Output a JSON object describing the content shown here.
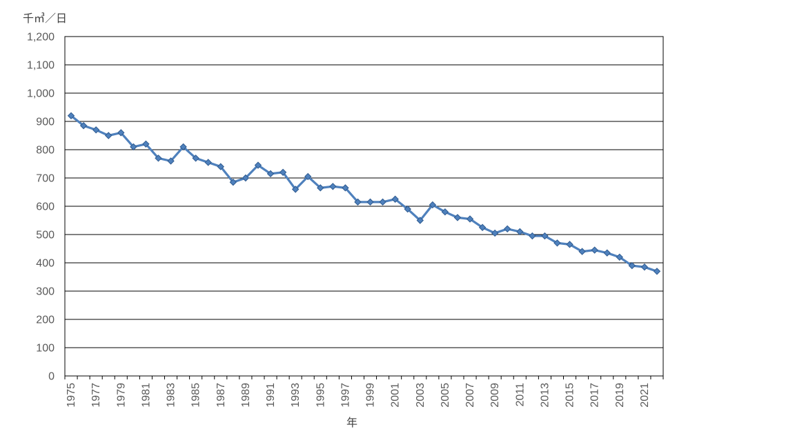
{
  "chart_data": {
    "type": "line",
    "title": "",
    "xlabel": "年",
    "ylabel": "千㎥／日",
    "x": [
      1975,
      1976,
      1977,
      1978,
      1979,
      1980,
      1981,
      1982,
      1983,
      1984,
      1985,
      1986,
      1987,
      1988,
      1989,
      1990,
      1991,
      1992,
      1993,
      1994,
      1995,
      1996,
      1997,
      1998,
      1999,
      2000,
      2001,
      2002,
      2003,
      2004,
      2005,
      2006,
      2007,
      2008,
      2009,
      2010,
      2011,
      2012,
      2013,
      2014,
      2015,
      2016,
      2017,
      2018,
      2019,
      2020,
      2021,
      2022
    ],
    "values": [
      920,
      885,
      870,
      850,
      860,
      810,
      820,
      770,
      760,
      810,
      770,
      755,
      740,
      685,
      700,
      745,
      715,
      720,
      660,
      705,
      665,
      670,
      665,
      615,
      615,
      615,
      625,
      590,
      550,
      605,
      580,
      560,
      555,
      525,
      505,
      520,
      510,
      495,
      495,
      470,
      465,
      440,
      445,
      435,
      420,
      390,
      385,
      370
    ],
    "ylim": [
      0,
      1200
    ],
    "y_tick_step": 100,
    "y_tick_labels": [
      "0",
      "100",
      "200",
      "300",
      "400",
      "500",
      "600",
      "700",
      "800",
      "900",
      "1,000",
      "1,100",
      "1,200"
    ],
    "x_tick_labels": [
      "1975",
      "1977",
      "1979",
      "1981",
      "1983",
      "1985",
      "1987",
      "1989",
      "1991",
      "1993",
      "1995",
      "1997",
      "1999",
      "2001",
      "2003",
      "2005",
      "2007",
      "2009",
      "2011",
      "2013",
      "2015",
      "2017",
      "2019",
      "2021"
    ],
    "x_tick_label_interval": 2,
    "grid": "horizontal",
    "legend": "none",
    "line_color": "#4F81BD",
    "marker_shape": "diamond",
    "marker_stroke": "#2E5A8F",
    "axis_color": "#000000",
    "tick_label_color": "#595959",
    "axis_title_color": "#404040"
  }
}
